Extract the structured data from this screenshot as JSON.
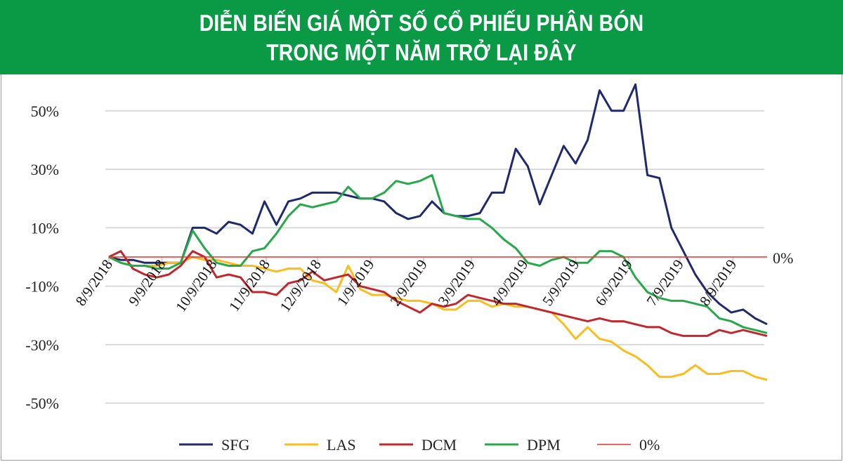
{
  "header": {
    "title_line1": "DIỄN BIẾN GIÁ MỘT SỐ CỔ PHIẾU PHÂN BÓN",
    "title_line2": "TRONG MỘT NĂM TRỞ LẠI ĐÂY",
    "background_color": "#0a9a46"
  },
  "chart_data": {
    "type": "line",
    "title": "DIỄN BIẾN GIÁ MỘT SỐ CỔ PHIẾU PHÂN BÓN TRONG MỘT NĂM TRỞ LẠI ĐÂY",
    "xlabel": "",
    "ylabel": "",
    "ylim": [
      -55,
      61
    ],
    "y_ticks": [
      50,
      30,
      10,
      -10,
      -30,
      -50
    ],
    "y_tick_labels": [
      "50%",
      "30%",
      "10%",
      "-10%",
      "-30%",
      "-50%"
    ],
    "x_ticks": [
      "2018-08-09",
      "2018-09-09",
      "2018-10-09",
      "2018-11-09",
      "2018-12-09",
      "2019-01-09",
      "2019-02-09",
      "2019-03-09",
      "2019-04-09",
      "2019-05-09",
      "2019-06-09",
      "2019-07-09",
      "2019-08-09"
    ],
    "x_tick_labels": [
      "8/9/2018",
      "9/9/2018",
      "10/9/2018",
      "11/9/2018",
      "12/9/2018",
      "1/9/2019",
      "2/9/2019",
      "3/9/2019",
      "4/9/2019",
      "5/9/2019",
      "6/9/2019",
      "7/9/2019",
      "8/9/2019"
    ],
    "grid": true,
    "legend_position": "bottom",
    "reference_line": {
      "name": "0%",
      "value": 0,
      "color": "#e8322b",
      "label": "0%"
    },
    "x": [
      "2018-08-09",
      "2018-08-16",
      "2018-08-23",
      "2018-08-30",
      "2018-09-06",
      "2018-09-13",
      "2018-09-20",
      "2018-09-27",
      "2018-10-04",
      "2018-10-11",
      "2018-10-18",
      "2018-10-25",
      "2018-11-01",
      "2018-11-08",
      "2018-11-15",
      "2018-11-22",
      "2018-11-29",
      "2018-12-06",
      "2018-12-13",
      "2018-12-20",
      "2018-12-27",
      "2019-01-03",
      "2019-01-10",
      "2019-01-17",
      "2019-01-24",
      "2019-01-31",
      "2019-02-07",
      "2019-02-14",
      "2019-02-21",
      "2019-02-28",
      "2019-03-07",
      "2019-03-14",
      "2019-03-21",
      "2019-03-28",
      "2019-04-04",
      "2019-04-11",
      "2019-04-18",
      "2019-04-25",
      "2019-05-02",
      "2019-05-09",
      "2019-05-16",
      "2019-05-23",
      "2019-05-30",
      "2019-06-06",
      "2019-06-13",
      "2019-06-20",
      "2019-06-27",
      "2019-07-04",
      "2019-07-11",
      "2019-07-18",
      "2019-07-25",
      "2019-08-01",
      "2019-08-08",
      "2019-08-15",
      "2019-08-22",
      "2019-08-29"
    ],
    "series": [
      {
        "name": "SFG",
        "color": "#1f2a6b",
        "values": [
          0,
          -1,
          -1,
          -2,
          -2,
          -2,
          -2,
          10,
          10,
          8,
          12,
          11,
          8,
          19,
          11,
          19,
          20,
          22,
          22,
          22,
          21,
          20,
          20,
          19,
          15,
          13,
          14,
          19,
          15,
          14,
          14,
          15,
          22,
          22,
          37,
          31,
          18,
          28,
          38,
          32,
          40,
          57,
          50,
          50,
          59,
          28,
          27,
          10,
          2,
          -6,
          -12,
          -16,
          -19,
          -18,
          -21,
          -23
        ]
      },
      {
        "name": "LAS",
        "color": "#fbbd1a",
        "values": [
          0,
          -2,
          -3,
          -3,
          -3,
          -2,
          -2,
          0,
          -1,
          -1,
          -2,
          -3,
          -3,
          -4,
          -5,
          -4,
          -4,
          -8,
          -9,
          -12,
          -3,
          -11,
          -13,
          -13,
          -14,
          -15,
          -15,
          -16,
          -18,
          -18,
          -15,
          -15,
          -17,
          -16,
          -17,
          -17,
          -18,
          -19,
          -23,
          -28,
          -24,
          -28,
          -29,
          -32,
          -34,
          -37,
          -41,
          -41,
          -40,
          -37,
          -40,
          -40,
          -39,
          -39,
          -41,
          -42
        ]
      },
      {
        "name": "DCM",
        "color": "#c1272d",
        "values": [
          0,
          2,
          -4,
          -6,
          -7,
          -6,
          -3,
          2,
          0,
          -7,
          -6,
          -7,
          -12,
          -12,
          -13,
          -9,
          -8,
          -5,
          -8,
          -7,
          -6,
          -10,
          -11,
          -12,
          -15,
          -17,
          -19,
          -16,
          -17,
          -16,
          -13,
          -14,
          -15,
          -16,
          -16,
          -17,
          -18,
          -19,
          -20,
          -21,
          -22,
          -21,
          -22,
          -22,
          -23,
          -24,
          -24,
          -26,
          -27,
          -27,
          -27,
          -25,
          -26,
          -25,
          -26,
          -27
        ]
      },
      {
        "name": "DPM",
        "color": "#27a84a",
        "values": [
          0,
          -2,
          -3,
          -3,
          -4,
          -4,
          -2,
          9,
          3,
          -2,
          -3,
          -3,
          2,
          3,
          8,
          14,
          18,
          17,
          18,
          19,
          24,
          20,
          20,
          22,
          26,
          25,
          26,
          28,
          15,
          14,
          13,
          13,
          10,
          6,
          3,
          -2,
          -3,
          -1,
          0,
          -2,
          -2,
          2,
          2,
          0,
          -7,
          -12,
          -14,
          -15,
          -15,
          -16,
          -17,
          -21,
          -22,
          -24,
          -25,
          -26
        ]
      }
    ]
  }
}
